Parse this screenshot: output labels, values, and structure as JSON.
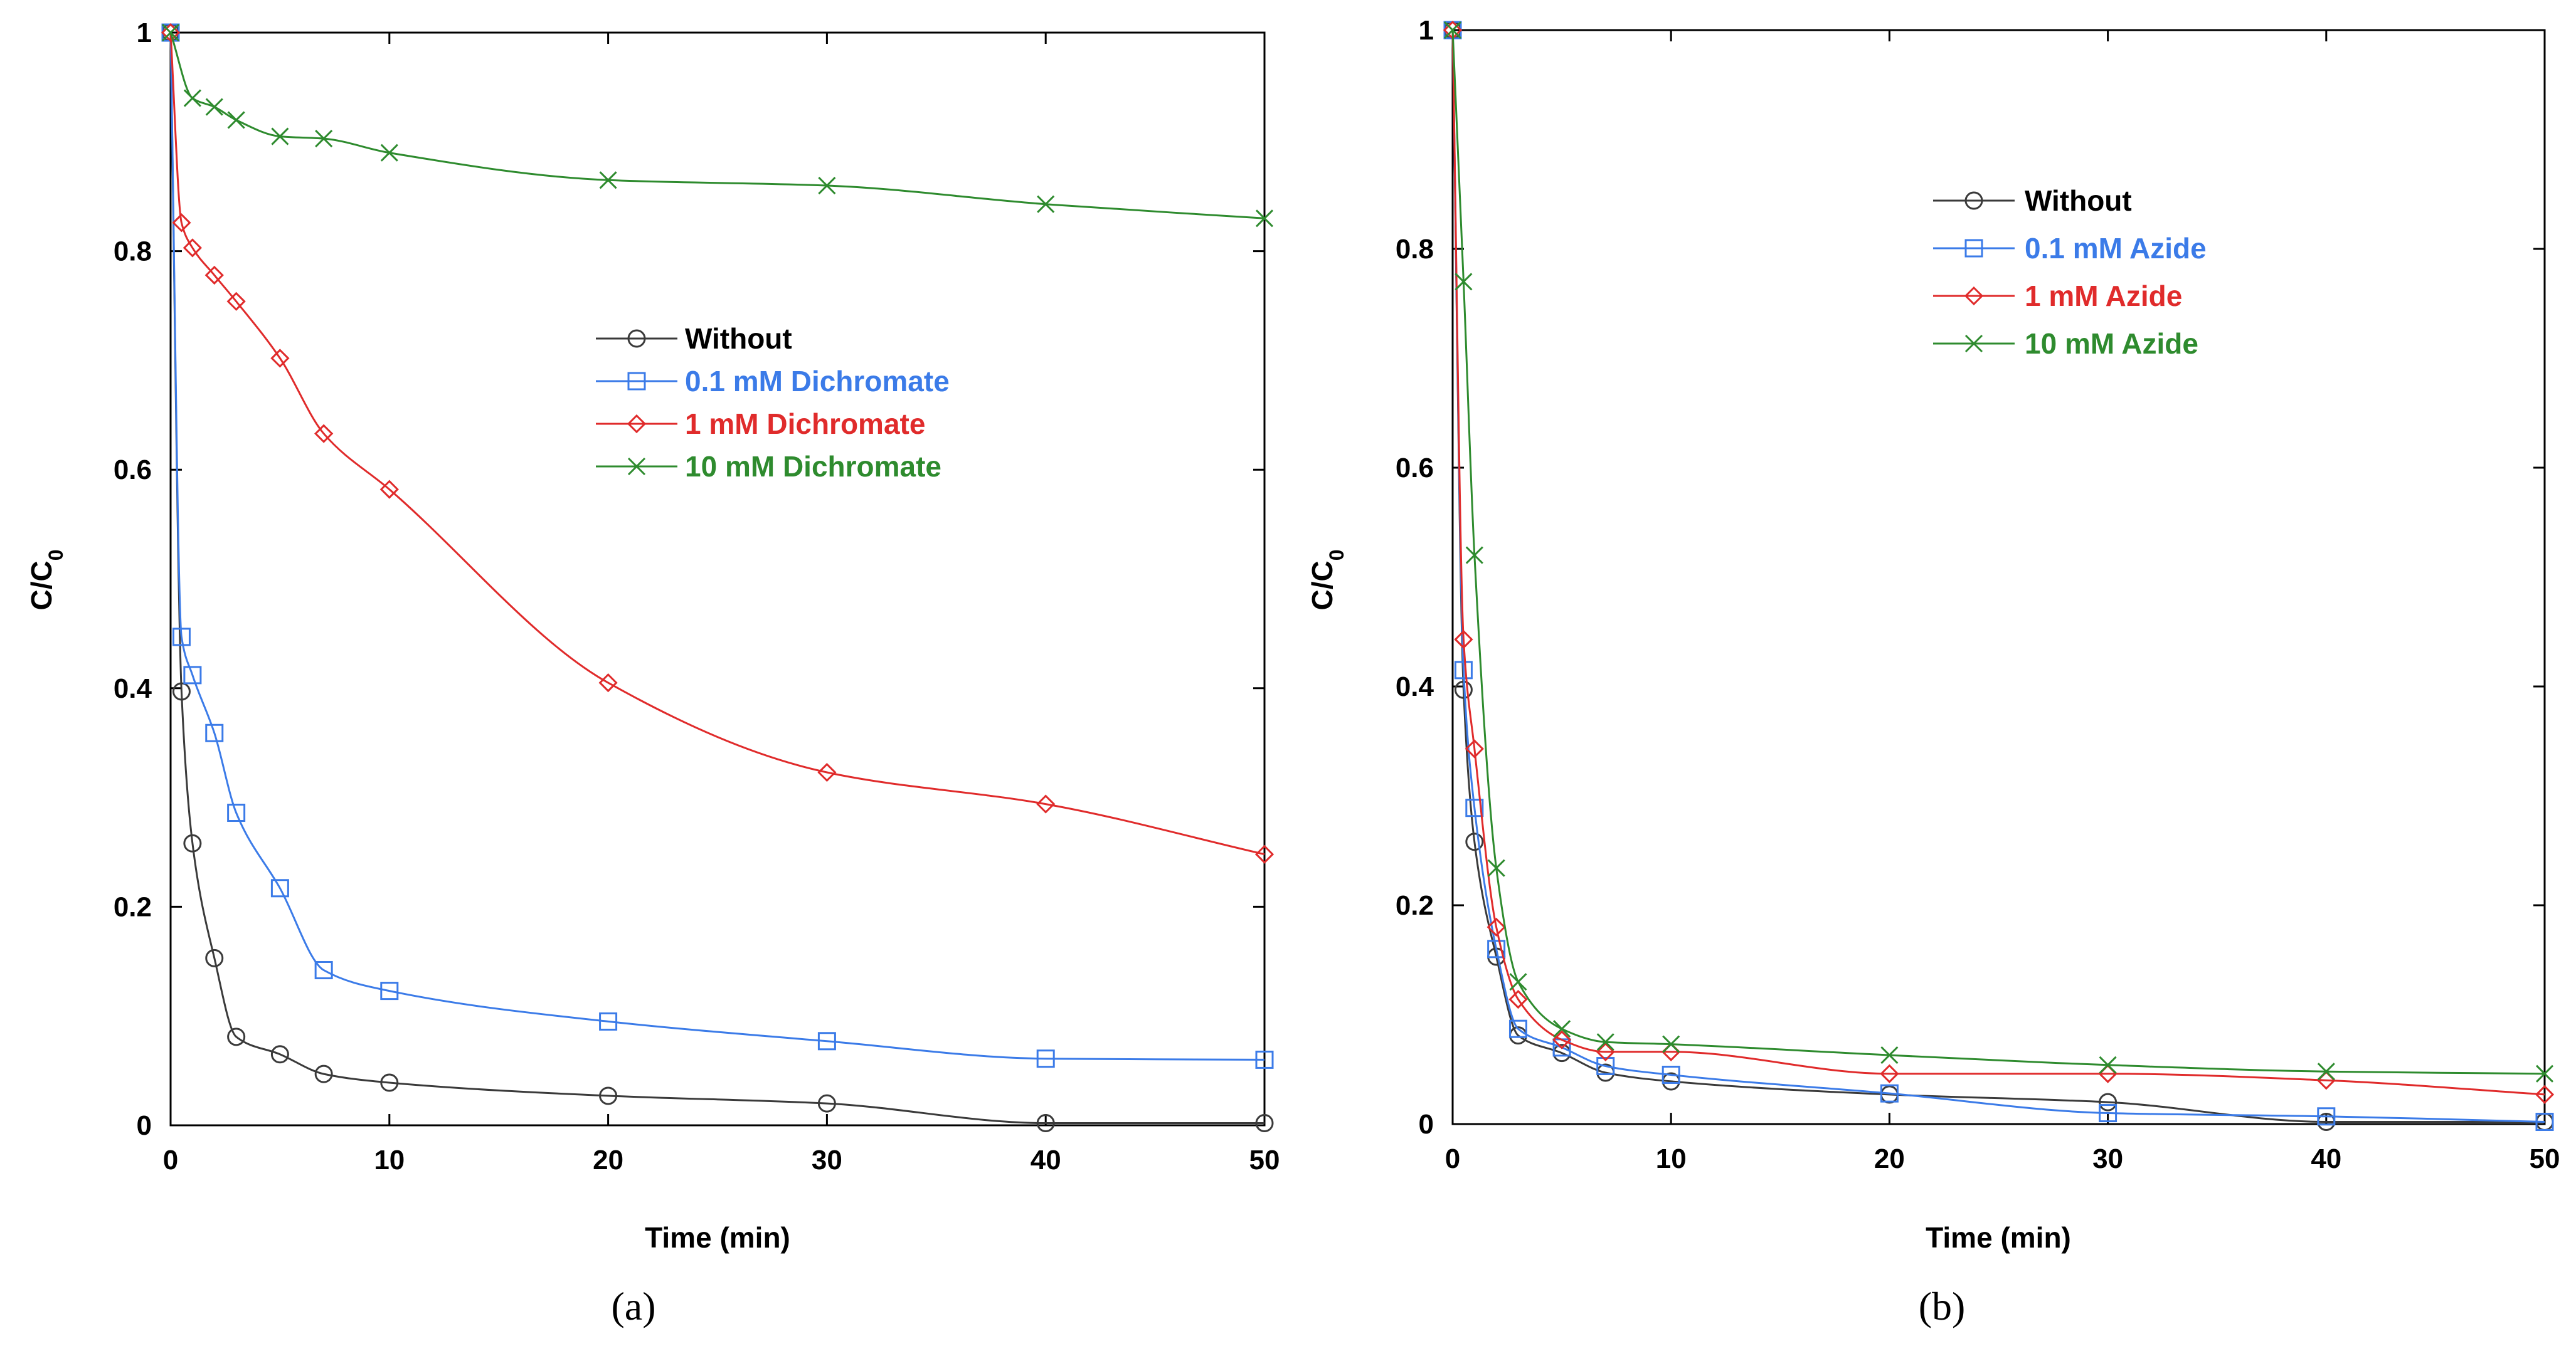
{
  "chart_data": [
    {
      "type": "line",
      "panel_label": "(a)",
      "xlabel": "Time (min)",
      "ylabel": "C/C",
      "ylabel_subscript": "0",
      "xlim": [
        0,
        50
      ],
      "ylim": [
        0,
        1
      ],
      "xticks": [
        "0",
        "10",
        "20",
        "30",
        "40",
        "50"
      ],
      "yticks": [
        "0",
        "0.2",
        "0.4",
        "0.6",
        "0.8",
        "1"
      ],
      "legend_position": "center",
      "series": [
        {
          "name": "Without",
          "color": "#3a3a3a",
          "marker": "circle",
          "x": [
            0,
            0.5,
            1,
            2,
            3,
            5,
            7,
            10,
            20,
            30,
            40,
            50
          ],
          "y": [
            1,
            0.397,
            0.258,
            0.153,
            0.081,
            0.065,
            0.047,
            0.039,
            0.027,
            0.02,
            0.002,
            0.002
          ]
        },
        {
          "name": "0.1 mM Dichromate",
          "color": "#3b7be8",
          "marker": "square",
          "x": [
            0,
            0.5,
            1,
            2,
            3,
            5,
            7,
            10,
            20,
            30,
            40,
            50
          ],
          "y": [
            1,
            0.447,
            0.412,
            0.359,
            0.286,
            0.217,
            0.142,
            0.123,
            0.095,
            0.077,
            0.061,
            0.06
          ]
        },
        {
          "name": "1 mM Dichromate",
          "color": "#e02b2b",
          "marker": "diamond",
          "x": [
            0,
            0.5,
            1,
            2,
            3,
            5,
            7,
            10,
            20,
            30,
            40,
            50
          ],
          "y": [
            1,
            0.826,
            0.803,
            0.778,
            0.754,
            0.702,
            0.633,
            0.582,
            0.405,
            0.323,
            0.294,
            0.248
          ]
        },
        {
          "name": "10 mM Dichromate",
          "color": "#2e8b2e",
          "marker": "x",
          "x": [
            0,
            1,
            2,
            3,
            5,
            7,
            10,
            20,
            30,
            40,
            50
          ],
          "y": [
            1,
            0.94,
            0.932,
            0.92,
            0.905,
            0.903,
            0.89,
            0.865,
            0.86,
            0.843,
            0.83
          ]
        }
      ]
    },
    {
      "type": "line",
      "panel_label": "(b)",
      "xlabel": "Time (min)",
      "ylabel": "C/C",
      "ylabel_subscript": "0",
      "xlim": [
        0,
        50
      ],
      "ylim": [
        0,
        1
      ],
      "xticks": [
        "0",
        "10",
        "20",
        "30",
        "40",
        "50"
      ],
      "yticks": [
        "0",
        "0.2",
        "0.4",
        "0.6",
        "0.8",
        "1"
      ],
      "legend_position": "top-center",
      "series": [
        {
          "name": "Without",
          "color": "#3a3a3a",
          "marker": "circle",
          "x": [
            0,
            0.5,
            1,
            2,
            3,
            5,
            7,
            10,
            20,
            30,
            40,
            50
          ],
          "y": [
            1,
            0.397,
            0.258,
            0.153,
            0.081,
            0.065,
            0.047,
            0.039,
            0.027,
            0.02,
            0.002,
            0.002
          ]
        },
        {
          "name": "0.1 mM Azide",
          "color": "#3b7be8",
          "marker": "square",
          "x": [
            0,
            0.5,
            1,
            2,
            3,
            5,
            7,
            10,
            20,
            30,
            40,
            50
          ],
          "y": [
            1,
            0.415,
            0.289,
            0.16,
            0.087,
            0.07,
            0.053,
            0.045,
            0.028,
            0.01,
            0.007,
            0.002
          ]
        },
        {
          "name": "1 mM Azide",
          "color": "#e02b2b",
          "marker": "diamond",
          "x": [
            0,
            0.5,
            1,
            2,
            3,
            5,
            7,
            10,
            20,
            30,
            40,
            50
          ],
          "y": [
            1,
            0.443,
            0.343,
            0.18,
            0.114,
            0.077,
            0.066,
            0.066,
            0.046,
            0.046,
            0.04,
            0.027
          ]
        },
        {
          "name": "10 mM Azide",
          "color": "#2e8b2e",
          "marker": "x",
          "x": [
            0,
            0.5,
            1,
            2,
            3,
            5,
            7,
            10,
            20,
            30,
            40,
            50
          ],
          "y": [
            1,
            0.77,
            0.52,
            0.234,
            0.13,
            0.087,
            0.075,
            0.073,
            0.063,
            0.054,
            0.048,
            0.046
          ]
        }
      ]
    }
  ]
}
